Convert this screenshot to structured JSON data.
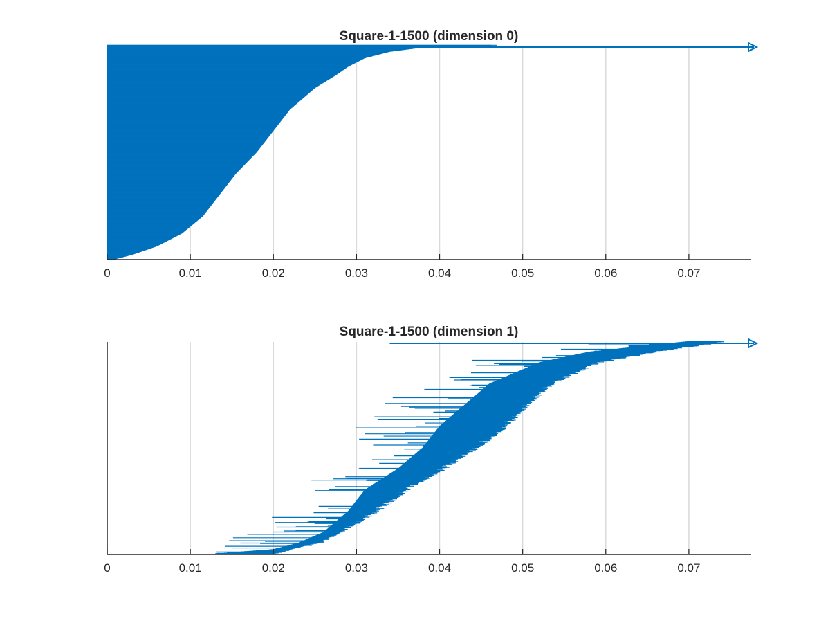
{
  "chart_data": [
    {
      "type": "barcode",
      "title": "Square-1-1500 (dimension 0)",
      "xlabel": "",
      "ylabel": "",
      "xlim": [
        0,
        0.0775
      ],
      "xticks": [
        0,
        0.01,
        0.02,
        0.03,
        0.04,
        0.05,
        0.06,
        0.07
      ],
      "xtick_labels": [
        "0",
        "0.01",
        "0.02",
        "0.03",
        "0.04",
        "0.05",
        "0.06",
        "0.07"
      ],
      "grid": "vertical",
      "color": "#0072BD",
      "infinite_bar": {
        "birth": 0,
        "death": "Infinity"
      },
      "bar_count": 1500,
      "all_births": 0,
      "death_profile": {
        "description_of_curve": "death times of sorted bars (fraction of bars from bottom -> death value)",
        "fraction": [
          0.0,
          0.02,
          0.06,
          0.12,
          0.2,
          0.3,
          0.4,
          0.5,
          0.6,
          0.7,
          0.8,
          0.86,
          0.9,
          0.94,
          0.97,
          0.99,
          1.0
        ],
        "death": [
          0.001,
          0.003,
          0.006,
          0.009,
          0.0115,
          0.0135,
          0.0155,
          0.018,
          0.02,
          0.022,
          0.025,
          0.0275,
          0.029,
          0.031,
          0.034,
          0.038,
          0.0475
        ]
      }
    },
    {
      "type": "barcode",
      "title": "Square-1-1500 (dimension 1)",
      "xlabel": "",
      "ylabel": "",
      "xlim": [
        0,
        0.0775
      ],
      "xticks": [
        0,
        0.01,
        0.02,
        0.03,
        0.04,
        0.05,
        0.06,
        0.07
      ],
      "xtick_labels": [
        "0",
        "0.01",
        "0.02",
        "0.03",
        "0.04",
        "0.05",
        "0.06",
        "0.07"
      ],
      "grid": "vertical",
      "color": "#0072BD",
      "infinite_bar": {
        "birth": 0.034,
        "death": "Infinity"
      },
      "bar_count": 1000,
      "birth_profile": {
        "description_of_curve": "birth times of sorted bars (fraction from bottom -> birth value)",
        "fraction": [
          0.0,
          0.02,
          0.05,
          0.1,
          0.2,
          0.3,
          0.4,
          0.5,
          0.6,
          0.7,
          0.8,
          0.9,
          0.95,
          1.0
        ],
        "birth": [
          0.013,
          0.02,
          0.023,
          0.026,
          0.029,
          0.031,
          0.035,
          0.038,
          0.04,
          0.043,
          0.046,
          0.052,
          0.058,
          0.07
        ]
      },
      "bar_length_range": [
        0.002,
        0.024
      ]
    }
  ]
}
